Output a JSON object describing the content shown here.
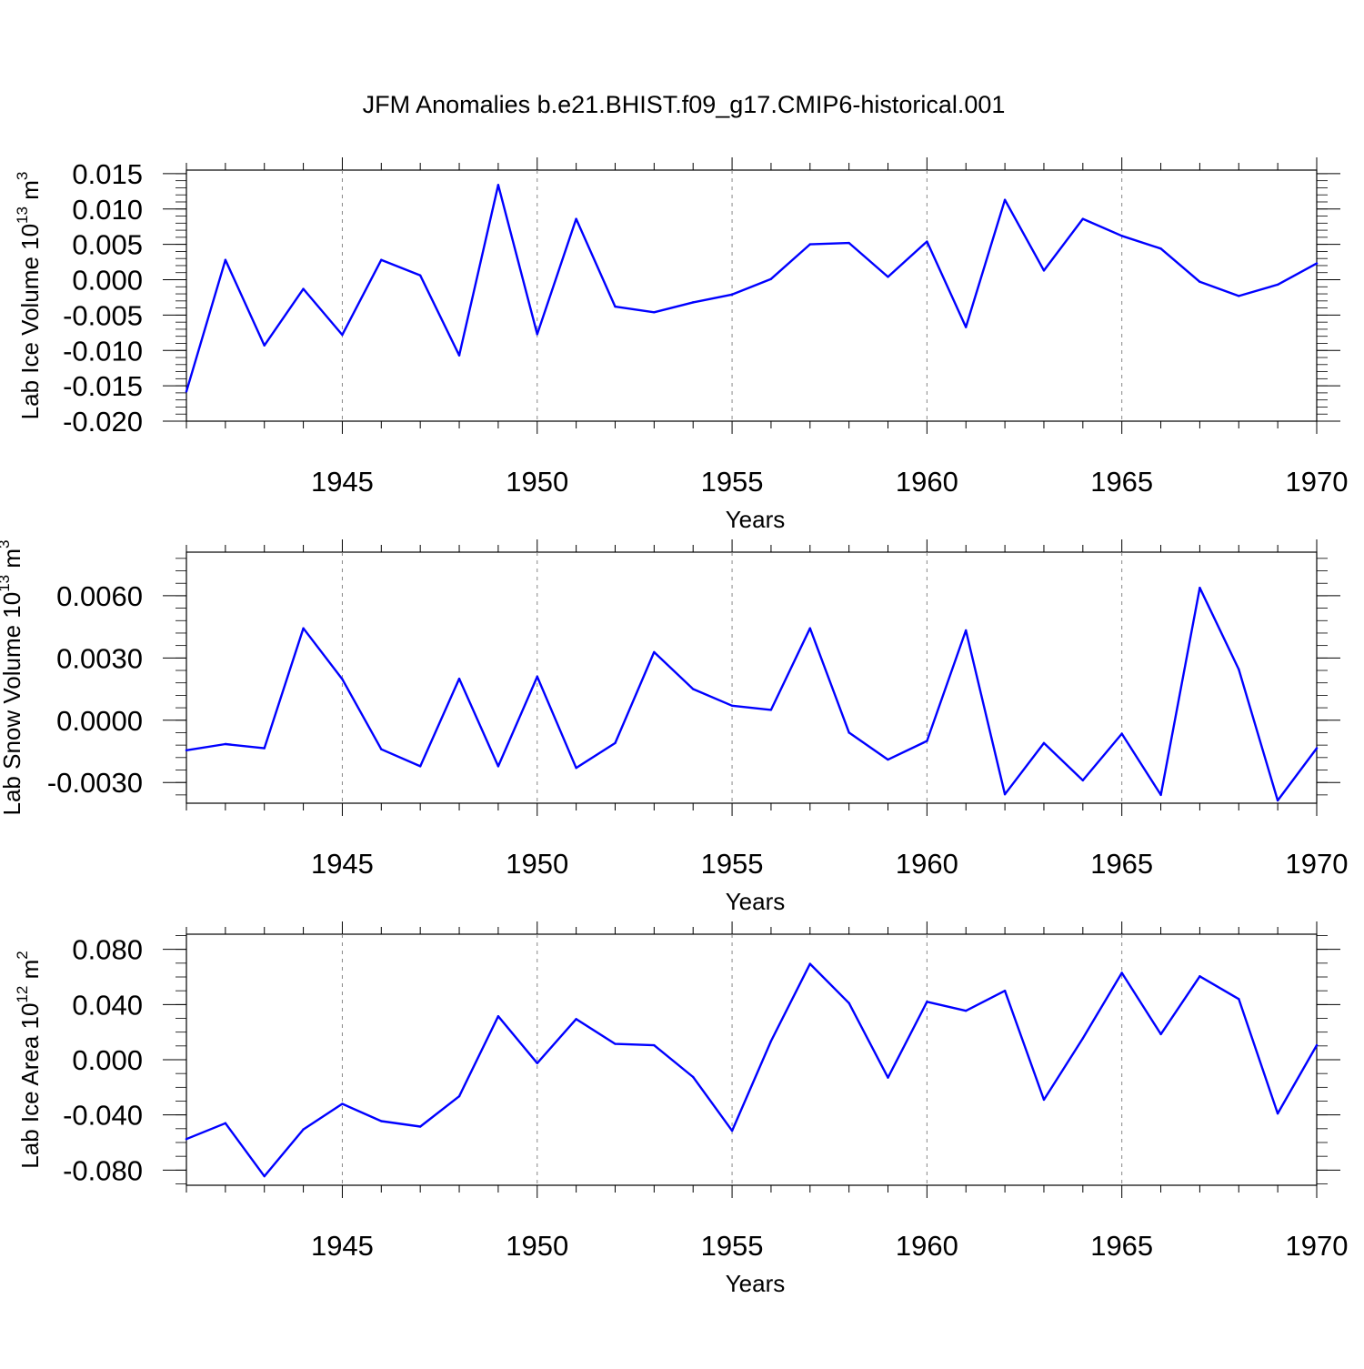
{
  "title": "JFM Anomalies b.e21.BHIST.f09_g17.CMIP6-historical.001",
  "colors": {
    "line": "#0000ff",
    "axis": "#000000",
    "grid": "#888888"
  },
  "chart_data": [
    {
      "type": "line",
      "ylabel": "Lab Ice Volume 10",
      "ylabel_sup": "13",
      "ylabel_unit": " m",
      "ylabel_unit_sup": "3",
      "xlabel": "Years",
      "xlim": [
        1941,
        1970
      ],
      "ylim": [
        -0.02,
        0.0155
      ],
      "x_ticks": [
        1945,
        1950,
        1955,
        1960,
        1965,
        1970
      ],
      "x_tick_labels": [
        "1945",
        "1950",
        "1955",
        "1960",
        "1965",
        "1970"
      ],
      "y_ticks": [
        0.015,
        0.01,
        0.005,
        0.0,
        -0.005,
        -0.01,
        -0.015,
        -0.02
      ],
      "y_tick_labels": [
        "0.015",
        "0.010",
        "0.005",
        "0.000",
        "-0.005",
        "-0.010",
        "-0.015",
        "-0.020"
      ],
      "y_minor_step": 0.001,
      "grid": "vertical dashed at major x ticks",
      "x": [
        1941,
        1942,
        1943,
        1944,
        1945,
        1946,
        1947,
        1948,
        1949,
        1950,
        1951,
        1952,
        1953,
        1954,
        1955,
        1956,
        1957,
        1958,
        1959,
        1960,
        1961,
        1962,
        1963,
        1964,
        1965,
        1966,
        1967,
        1968,
        1969,
        1970
      ],
      "series": [
        {
          "values": [
            -0.0158,
            0.0028,
            -0.0093,
            -0.0013,
            -0.0078,
            0.0028,
            0.0006,
            -0.0107,
            0.0134,
            -0.0077,
            0.0086,
            -0.0038,
            -0.0046,
            -0.0032,
            -0.0021,
            0.0001,
            0.005,
            0.0052,
            0.0004,
            0.0054,
            -0.0067,
            0.0113,
            0.0013,
            0.0086,
            0.0062,
            0.0044,
            -0.0003,
            -0.0023,
            -0.0007,
            0.0023
          ]
        }
      ]
    },
    {
      "type": "line",
      "ylabel": "Lab Snow Volume 10",
      "ylabel_sup": "13",
      "ylabel_unit": " m",
      "ylabel_unit_sup": "3",
      "xlabel": "Years",
      "xlim": [
        1941,
        1970
      ],
      "ylim": [
        -0.004,
        0.0081
      ],
      "x_ticks": [
        1945,
        1950,
        1955,
        1960,
        1965,
        1970
      ],
      "x_tick_labels": [
        "1945",
        "1950",
        "1955",
        "1960",
        "1965",
        "1970"
      ],
      "y_ticks": [
        0.006,
        0.003,
        0.0,
        -0.003
      ],
      "y_tick_labels": [
        "0.0060",
        "0.0030",
        "0.0000",
        "-0.0030"
      ],
      "y_minor_step": 0.0006,
      "grid": "vertical dashed at major x ticks",
      "x": [
        1941,
        1942,
        1943,
        1944,
        1945,
        1946,
        1947,
        1948,
        1949,
        1950,
        1951,
        1952,
        1953,
        1954,
        1955,
        1956,
        1957,
        1958,
        1959,
        1960,
        1961,
        1962,
        1963,
        1964,
        1965,
        1966,
        1967,
        1968,
        1969,
        1970
      ],
      "series": [
        {
          "values": [
            -0.00145,
            -0.00115,
            -0.00135,
            0.00443,
            0.00198,
            -0.0014,
            -0.00222,
            0.002,
            -0.00222,
            0.0021,
            -0.0023,
            -0.0011,
            0.00328,
            0.0015,
            0.0007,
            0.0005,
            0.00443,
            -0.0006,
            -0.0019,
            -0.001,
            0.00433,
            -0.00357,
            -0.0011,
            -0.0029,
            -0.00065,
            -0.0036,
            0.00638,
            0.00245,
            -0.00387,
            -0.00135
          ]
        }
      ]
    },
    {
      "type": "line",
      "ylabel": "Lab Ice Area 10",
      "ylabel_sup": "12",
      "ylabel_unit": " m",
      "ylabel_unit_sup": "2",
      "xlabel": "Years",
      "xlim": [
        1941,
        1970
      ],
      "ylim": [
        -0.091,
        0.091
      ],
      "x_ticks": [
        1945,
        1950,
        1955,
        1960,
        1965,
        1970
      ],
      "x_tick_labels": [
        "1945",
        "1950",
        "1955",
        "1960",
        "1965",
        "1970"
      ],
      "y_ticks": [
        0.08,
        0.04,
        0.0,
        -0.04,
        -0.08
      ],
      "y_tick_labels": [
        "0.080",
        "0.040",
        "0.000",
        "-0.040",
        "-0.080"
      ],
      "y_minor_step": 0.01,
      "grid": "vertical dashed at major x ticks",
      "x": [
        1941,
        1942,
        1943,
        1944,
        1945,
        1946,
        1947,
        1948,
        1949,
        1950,
        1951,
        1952,
        1953,
        1954,
        1955,
        1956,
        1957,
        1958,
        1959,
        1960,
        1961,
        1962,
        1963,
        1964,
        1965,
        1966,
        1967,
        1968,
        1969,
        1970
      ],
      "series": [
        {
          "values": [
            -0.0575,
            -0.046,
            -0.0845,
            -0.0505,
            -0.032,
            -0.0445,
            -0.0485,
            -0.0265,
            0.0315,
            -0.0025,
            0.0295,
            0.0115,
            0.0105,
            -0.0125,
            -0.0515,
            0.0135,
            0.0695,
            0.041,
            -0.013,
            0.042,
            0.0355,
            0.05,
            -0.029,
            0.0155,
            0.063,
            0.0185,
            0.0605,
            0.044,
            -0.039,
            0.0105
          ]
        }
      ]
    }
  ]
}
